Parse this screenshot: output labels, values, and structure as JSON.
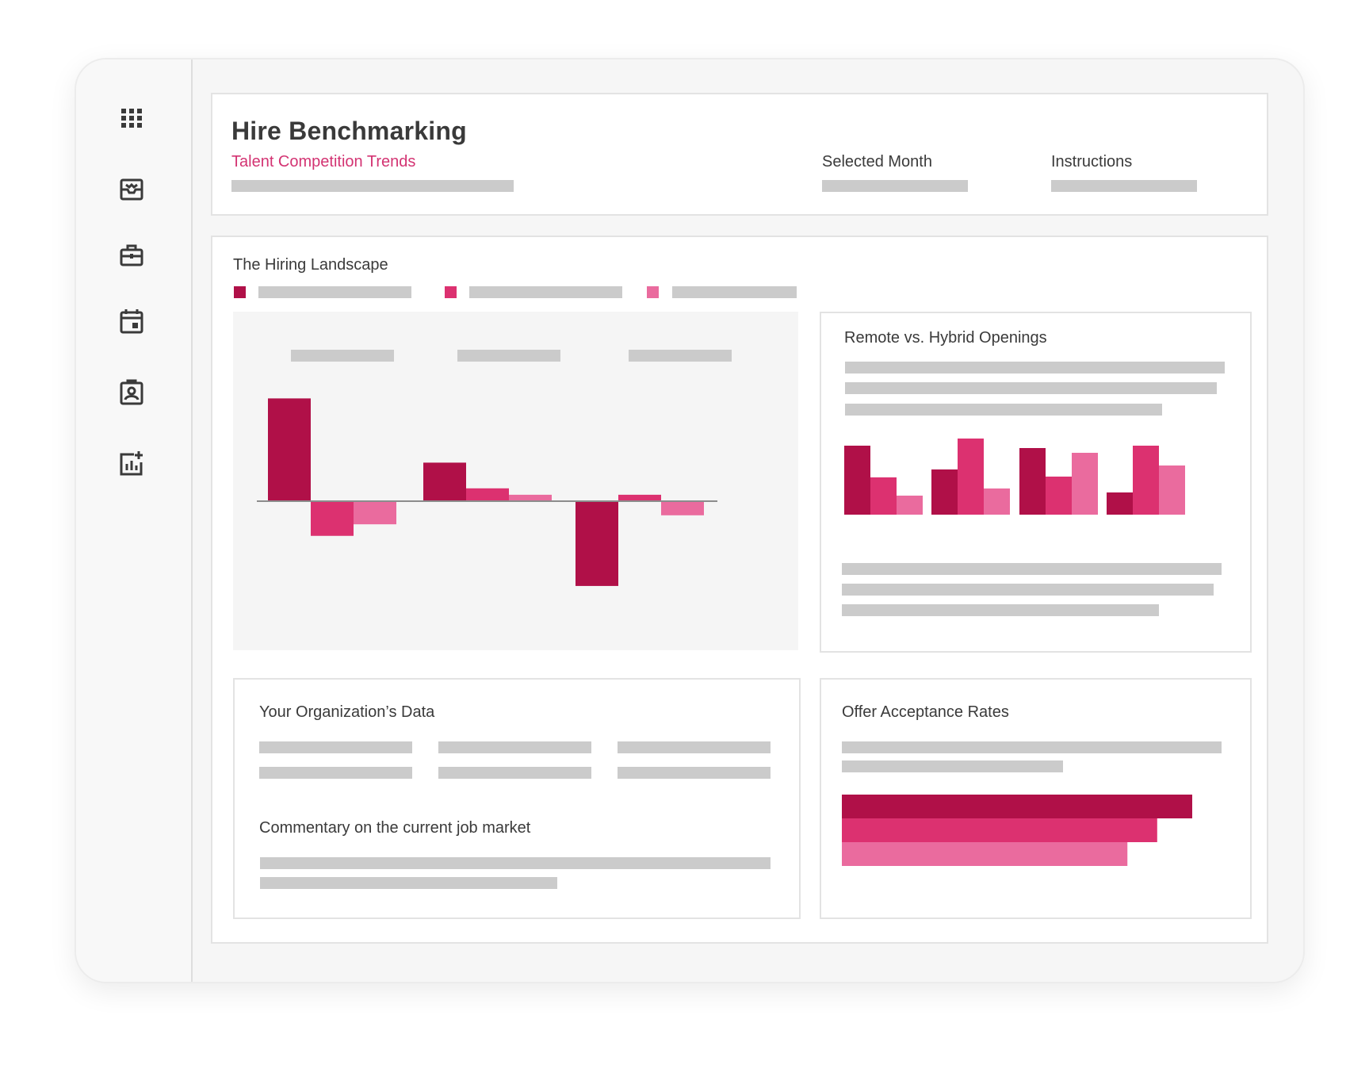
{
  "header": {
    "title": "Hire Benchmarking",
    "subtitle": "Talent Competition Trends",
    "selected_month_label": "Selected Month",
    "instructions_label": "Instructions"
  },
  "sidebar": {
    "items": [
      {
        "icon": "apps-grid-icon"
      },
      {
        "icon": "inbox-icon"
      },
      {
        "icon": "briefcase-icon"
      },
      {
        "icon": "calendar-icon"
      },
      {
        "icon": "contact-badge-icon"
      },
      {
        "icon": "add-chart-icon"
      }
    ]
  },
  "panels": {
    "hiring_landscape_title": "The Hiring Landscape",
    "remote_hybrid_title": "Remote vs. Hybrid Openings",
    "org_data_title": "Your Organization’s Data",
    "commentary_title": "Commentary on the current job market",
    "offer_acceptance_title": "Offer Acceptance Rates"
  },
  "colors": {
    "series1": "#b01048",
    "series2": "#dc3170",
    "series3": "#ea6b9e",
    "placeholder": "#cbcbcb"
  },
  "chart_data": [
    {
      "type": "bar",
      "categories": [
        "",
        "",
        ""
      ],
      "series": [
        {
          "values": [
            80,
            30,
            -66
          ]
        },
        {
          "values": [
            -27,
            10,
            5
          ]
        },
        {
          "values": [
            -18,
            5,
            -11
          ]
        }
      ],
      "ylim": [
        -70,
        90
      ]
    },
    {
      "type": "bar",
      "categories": [
        "",
        "",
        "",
        ""
      ],
      "series": [
        {
          "values": [
            87,
            57,
            84,
            28
          ]
        },
        {
          "values": [
            47,
            96,
            48,
            87
          ]
        },
        {
          "values": [
            24,
            33,
            78,
            62
          ]
        }
      ],
      "ylim": [
        0,
        100
      ]
    },
    {
      "type": "bar",
      "orientation": "horizontal",
      "categories": [
        "",
        "",
        ""
      ],
      "series": [
        {
          "values": [
            100,
            90,
            81.5
          ]
        }
      ],
      "xlim": [
        0,
        100
      ]
    }
  ]
}
